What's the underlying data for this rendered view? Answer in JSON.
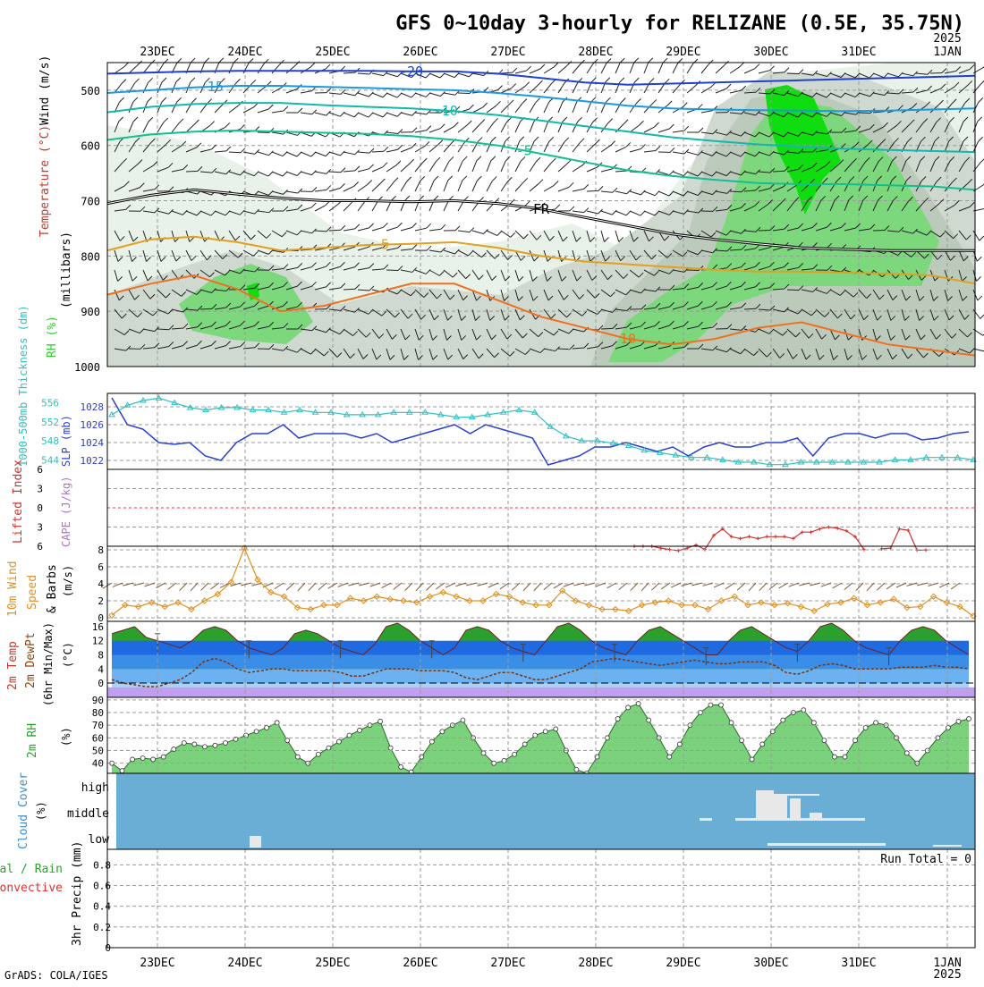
{
  "title": "GFS 0~10day 3-hourly for RELIZANE (0.5E, 35.75N)",
  "credit": "GrADS: COLA/IGES",
  "time_axis": {
    "dates": [
      "23DEC",
      "24DEC",
      "25DEC",
      "26DEC",
      "27DEC",
      "28DEC",
      "29DEC",
      "30DEC",
      "31DEC",
      "1JAN"
    ],
    "year": "2025"
  },
  "colors": {
    "slp": "#2a3fd0",
    "thickness": "#30c0c0",
    "lifted_index": "#d03030",
    "wind10m": "#e09020",
    "temp_fill": "#2ca02c",
    "rh_fill": "#22cc22",
    "cloud_bg": "#6aaed6",
    "cloud_fill": "#e8e8e8",
    "rh_dark": "#33cc33"
  },
  "chart_data": [
    {
      "id": "upper-air",
      "type": "line",
      "ylabel_parts": [
        "Wind (m/s)",
        "Temperature (°C)",
        "RH (%)"
      ],
      "ylabel2": "(millibars)",
      "yticks": [
        500,
        600,
        700,
        800,
        900,
        1000
      ],
      "isotherms": [
        {
          "name": "-20",
          "label_x": 0.35,
          "y": [
            470,
            468,
            466,
            465,
            465,
            465,
            465,
            466,
            466,
            470,
            478,
            486,
            490,
            488,
            486,
            484,
            482,
            480,
            478,
            476,
            474
          ]
        },
        {
          "name": "-15",
          "label_x": 0.12,
          "y": [
            505,
            500,
            495,
            492,
            492,
            494,
            496,
            498,
            500,
            505,
            512,
            520,
            528,
            533,
            535,
            536,
            537,
            538,
            537,
            535,
            533
          ]
        },
        {
          "name": "-10",
          "label_x": 0.39,
          "y": [
            540,
            530,
            525,
            523,
            523,
            527,
            530,
            533,
            538,
            545,
            555,
            565,
            575,
            585,
            592,
            598,
            602,
            606,
            608,
            610,
            612
          ]
        },
        {
          "name": "-5",
          "label_x": 0.48,
          "y": [
            590,
            580,
            575,
            573,
            575,
            577,
            579,
            583,
            590,
            600,
            615,
            630,
            645,
            655,
            662,
            668,
            670,
            670,
            672,
            674,
            680
          ]
        },
        {
          "name": "0",
          "label_x": 0.5,
          "y": [
            705,
            690,
            680,
            688,
            695,
            700,
            700,
            702,
            700,
            705,
            715,
            730,
            745,
            760,
            770,
            778,
            785,
            788,
            790,
            790,
            790
          ]
        },
        {
          "name": "5",
          "label_x": 0.32,
          "y": [
            790,
            770,
            765,
            775,
            790,
            785,
            780,
            778,
            775,
            785,
            800,
            810,
            815,
            820,
            825,
            828,
            828,
            830,
            832,
            835,
            850
          ]
        },
        {
          "name": "10",
          "label_x": 0.6,
          "y": [
            870,
            850,
            835,
            860,
            900,
            890,
            870,
            850,
            850,
            880,
            910,
            930,
            950,
            960,
            950,
            930,
            920,
            940,
            960,
            970,
            980
          ]
        }
      ],
      "rh_contours": [
        "30",
        "50",
        "70",
        "90"
      ],
      "freezing_label": "FR"
    },
    {
      "id": "slp-thickness",
      "type": "line",
      "ylabel_left": "1000-500mb Thickness (dm)",
      "ylabel_right": "SLP (mb)",
      "yticks_left": [
        544,
        548,
        552,
        556
      ],
      "yticks_right": [
        1022,
        1024,
        1026,
        1028
      ],
      "series": [
        {
          "name": "SLP",
          "axis": "right",
          "values": [
            1029,
            1026,
            1025.5,
            1024,
            1023.8,
            1024,
            1022.5,
            1022,
            1024,
            1025,
            1025,
            1026,
            1024.5,
            1025,
            1025,
            1025,
            1024.5,
            1025,
            1024,
            1024.5,
            1025,
            1025.5,
            1026,
            1025,
            1026,
            1025.5,
            1025,
            1024.5,
            1021.5,
            1022,
            1022.5,
            1023.5,
            1023.5,
            1024,
            1023.5,
            1023,
            1023.5,
            1022.5,
            1023.5,
            1024,
            1023.5,
            1023.5,
            1024,
            1024,
            1024.5,
            1022.5,
            1024.5,
            1025,
            1025,
            1024.5,
            1025,
            1025,
            1024.3,
            1024.5,
            1025,
            1025.2
          ]
        },
        {
          "name": "Thickness",
          "axis": "left",
          "values": [
            553.5,
            555.5,
            556.5,
            557,
            556,
            555,
            554.5,
            555,
            555,
            554.5,
            554.5,
            554,
            554.5,
            554,
            554,
            553.5,
            553.5,
            553.5,
            554,
            554,
            554,
            553.5,
            553,
            553,
            553.5,
            554,
            554.5,
            554,
            551,
            549,
            548,
            548,
            547.5,
            547,
            546,
            545.5,
            545,
            544.5,
            544.5,
            544,
            543.5,
            543.5,
            543,
            543,
            543.5,
            543.5,
            543.5,
            543.5,
            543.5,
            543.5,
            544,
            544,
            544.5,
            544.5,
            544.5,
            544
          ]
        }
      ]
    },
    {
      "id": "cape-li",
      "type": "line",
      "ylabel_left": "Lifted Index",
      "ylabel_right": "CAPE (J/kg)",
      "yticks": [
        "6",
        "3",
        "0",
        "3",
        "6"
      ],
      "series": [
        {
          "name": "Lifted Index",
          "x_start": 33,
          "values": [
            6,
            6,
            6,
            6.3,
            6.5,
            6.7,
            6.3,
            5.8,
            6.5,
            4.3,
            3.3,
            4.5,
            4.8,
            4.5,
            4.8,
            4.5,
            4.5,
            4.5,
            4.8,
            3.8,
            3.8,
            3.3,
            3,
            3.2,
            3.6,
            4.5,
            6.5,
            6.4,
            6.4,
            6.3,
            3.3,
            3.5,
            6.6,
            6.6
          ]
        }
      ]
    },
    {
      "id": "wind10m",
      "type": "line",
      "ylabel": "10m Wind Speed & Barbs (m/s)",
      "yticks": [
        0,
        2,
        4,
        6,
        8
      ],
      "series": [
        {
          "name": "10m Wind Speed",
          "values": [
            0.3,
            1.5,
            1.3,
            1.8,
            1.3,
            1.8,
            1,
            2,
            2.8,
            4.2,
            8.2,
            4.5,
            3,
            2.5,
            1.2,
            1,
            1.5,
            1.5,
            2.3,
            2,
            2.5,
            2.2,
            2,
            1.8,
            2.5,
            3,
            2.5,
            2,
            2,
            2.8,
            2.5,
            1.8,
            1.5,
            1.5,
            3.2,
            2,
            1.5,
            1,
            1,
            0.8,
            1.5,
            1.8,
            2,
            1.5,
            1.5,
            1,
            2,
            2.5,
            1.5,
            1.8,
            1.5,
            1.7,
            1.3,
            0.8,
            1.6,
            1.8,
            2.3,
            1.5,
            1.8,
            2.2,
            1.2,
            1.3,
            2.5,
            1.8,
            1.3,
            0.2
          ]
        }
      ]
    },
    {
      "id": "temp2m",
      "type": "area",
      "ylabel": "2m Temp 2m DewPt (6hr Min/Max) (°C)",
      "yticks": [
        0,
        4,
        8,
        12,
        16
      ],
      "series": [
        {
          "name": "2m Temp",
          "values": [
            14,
            15,
            16,
            13,
            12,
            11,
            10,
            12,
            15,
            16,
            15,
            12,
            10,
            9,
            8,
            10,
            14,
            15,
            14,
            12,
            10,
            9,
            8,
            11,
            16,
            17,
            15,
            12,
            10,
            8,
            10,
            15,
            16,
            15,
            12,
            10,
            9,
            8,
            12,
            16,
            17,
            15,
            12,
            10,
            9,
            8,
            12,
            15,
            16,
            14,
            12,
            10,
            8,
            8,
            12,
            15,
            16,
            14,
            12,
            10,
            9,
            12,
            16,
            17,
            15,
            12,
            10,
            9,
            8,
            12,
            15,
            16,
            15,
            12,
            10,
            8
          ]
        },
        {
          "name": "2m DewPt",
          "values": [
            1,
            0,
            -0.5,
            -1,
            -1,
            0,
            1,
            3,
            6,
            7,
            6,
            4,
            3,
            3.5,
            4,
            4,
            3.5,
            3.5,
            3.5,
            3.5,
            3,
            2,
            2,
            3,
            4,
            4,
            4,
            3.5,
            3.5,
            3.5,
            3,
            1.5,
            1,
            2,
            3,
            3,
            2,
            1,
            1,
            2,
            3,
            4,
            6,
            6.5,
            7,
            6.5,
            6,
            5.5,
            5,
            5.5,
            6,
            6.5,
            6,
            5.5,
            5.5,
            6,
            6,
            6,
            5,
            3,
            2.5,
            3.5,
            5,
            5.5,
            5,
            4,
            4,
            4,
            4,
            4.5,
            4.5,
            4.5,
            5,
            4.5,
            4.5,
            4
          ]
        }
      ]
    },
    {
      "id": "rh2m",
      "type": "area",
      "ylabel": "2m RH (%)",
      "yticks": [
        40,
        50,
        60,
        70,
        80,
        90
      ],
      "series": [
        {
          "name": "2m RH",
          "values": [
            40,
            34,
            43,
            44,
            43,
            45,
            51,
            56,
            55,
            53,
            54,
            56,
            59,
            62,
            65,
            68,
            72,
            58,
            45,
            40,
            47,
            52,
            57,
            62,
            66,
            70,
            73,
            52,
            37,
            33,
            45,
            57,
            65,
            70,
            74,
            60,
            48,
            40,
            42,
            47,
            55,
            62,
            65,
            67,
            50,
            35,
            32,
            45,
            60,
            75,
            84,
            87,
            74,
            60,
            45,
            55,
            70,
            80,
            86,
            86,
            72,
            58,
            43,
            55,
            65,
            74,
            80,
            82,
            72,
            58,
            45,
            45,
            58,
            68,
            72,
            70,
            60,
            48,
            40,
            50,
            60,
            68,
            73,
            75
          ]
        }
      ]
    },
    {
      "id": "cloud",
      "type": "bar",
      "ylabel": "Cloud Cover (%)",
      "ytick_labels": [
        "high",
        "middle",
        "low"
      ],
      "layers": [
        "high",
        "middle",
        "low"
      ]
    },
    {
      "id": "precip",
      "type": "bar",
      "ylabel": "3hr Precip (mm)",
      "ylabel_rain": "Total / Rain",
      "ylabel_conv": "Convective",
      "yticks": [
        "0",
        "0.2",
        "0.4",
        "0.6",
        "0.8"
      ],
      "run_total": "Run Total = 0",
      "values": []
    }
  ]
}
